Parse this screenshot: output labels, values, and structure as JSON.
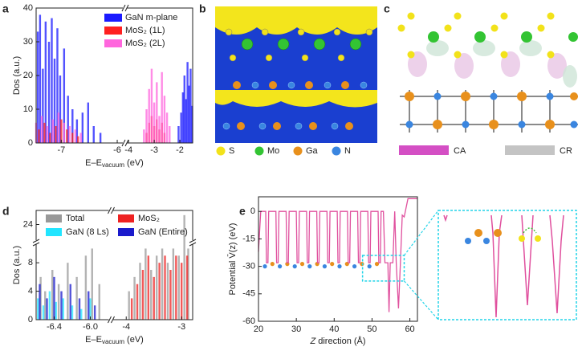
{
  "chart_data": [
    {
      "type": "spike",
      "label": "a",
      "ylabel": "Dos (a.u.)",
      "xlabel": {
        "main": "E–E",
        "sub": "vacuum",
        "tail": " (eV)"
      },
      "xlim_segments": [
        [
          -7.45,
          -5.9
        ],
        [
          -4.1,
          -1.5
        ]
      ],
      "ylim": [
        0,
        40
      ],
      "xticks": [
        -7,
        -6,
        -4,
        -3,
        -2
      ],
      "yticks": [
        0,
        10,
        20,
        30,
        40
      ],
      "legend": "upper right",
      "series": [
        {
          "name": "GaN m-plane",
          "color": "#1a1aff",
          "x": [
            -7.42,
            -7.38,
            -7.33,
            -7.28,
            -7.22,
            -7.17,
            -7.12,
            -7.07,
            -7.02,
            -6.95,
            -6.88,
            -6.8,
            -6.72,
            -6.62,
            -6.52,
            -6.42,
            -6.3,
            -2.05,
            -1.95,
            -1.88,
            -1.82,
            -1.76,
            -1.7,
            -1.64,
            -1.58,
            -1.52
          ],
          "values": [
            33,
            38,
            22,
            36,
            30,
            37,
            25,
            34,
            20,
            28,
            14,
            10,
            7,
            9,
            12,
            5,
            3,
            5,
            9,
            15,
            20,
            13,
            24,
            17,
            22,
            11
          ]
        },
        {
          "name": "MoS₂ (1L)",
          "color": "#ff2020",
          "x": [
            -7.4,
            -7.3,
            -7.2,
            -7.1,
            -7.0,
            -6.9,
            -6.8,
            -6.7,
            -3.3,
            -3.2,
            -3.1,
            -3.0,
            -2.9,
            -2.8,
            -2.7,
            -2.6
          ],
          "values": [
            4,
            6,
            3,
            5,
            7,
            4,
            3,
            2,
            3,
            6,
            8,
            5,
            7,
            4,
            6,
            3
          ]
        },
        {
          "name": "MoS₂ (2L)",
          "color": "#ff66dd",
          "x": [
            -7.45,
            -7.35,
            -7.25,
            -7.15,
            -7.05,
            -6.95,
            -6.85,
            -6.75,
            -6.65,
            -3.4,
            -3.3,
            -3.2,
            -3.1,
            -3.0,
            -2.9,
            -2.8,
            -2.7,
            -2.6,
            -2.5,
            -2.4
          ],
          "values": [
            6,
            8,
            5,
            7,
            9,
            6,
            5,
            4,
            3,
            4,
            10,
            16,
            22,
            12,
            18,
            8,
            21,
            14,
            9,
            5
          ]
        }
      ]
    },
    {
      "type": "spike",
      "label": "d",
      "ylabel": "Dos (a.u.)",
      "xlabel": {
        "main": "E–E",
        "sub": "vacuum",
        "tail": " (eV)"
      },
      "xlim_segments": [
        [
          -6.6,
          -5.8
        ],
        [
          -4.25,
          -2.8
        ]
      ],
      "ylim_segments": [
        [
          0,
          10.5
        ],
        [
          22.5,
          25.5
        ]
      ],
      "xticks": [
        -6.4,
        {
          "value": -6,
          "label": "-6.0"
        },
        -4,
        -3
      ],
      "yticks": [
        0,
        4,
        8,
        24
      ],
      "legend": "upper center",
      "series": [
        {
          "name": "Total",
          "color": "#999999",
          "x": [
            -6.55,
            -6.5,
            -6.42,
            -6.35,
            -6.25,
            -6.15,
            -6.05,
            -5.98,
            -5.9,
            -3.95,
            -3.85,
            -3.75,
            -3.65,
            -3.55,
            -3.45,
            -3.35,
            -3.25,
            -3.15,
            -3.05,
            -2.95,
            -2.88
          ],
          "values": [
            6,
            4,
            7,
            5,
            8,
            6,
            9,
            10,
            5,
            4,
            6,
            8,
            10,
            7,
            9,
            10,
            8,
            10,
            9,
            25,
            10
          ]
        },
        {
          "name": "MoS₂",
          "color": "#ee2222",
          "x": [
            -3.9,
            -3.8,
            -3.7,
            -3.6,
            -3.5,
            -3.4,
            -3.3,
            -3.2,
            -3.1,
            -3.0,
            -2.9
          ],
          "values": [
            3,
            5,
            7,
            9,
            6,
            8,
            9,
            7,
            9,
            8,
            9
          ]
        },
        {
          "name": "GaN (8 Ls)",
          "color": "#22e5ff",
          "x": [
            -6.58,
            -6.52,
            -6.45,
            -6.38,
            -6.3,
            -6.2,
            -6.1,
            -6.0
          ],
          "values": [
            3,
            2,
            4,
            2.5,
            3,
            2,
            1.5,
            3
          ]
        },
        {
          "name": "GaN (Entire)",
          "color": "#1a1acc",
          "x": [
            -6.56,
            -6.48,
            -6.4,
            -6.32,
            -6.22,
            -6.12,
            -6.02,
            -5.95
          ],
          "values": [
            5,
            3,
            6,
            4,
            5,
            3,
            4,
            2
          ]
        }
      ]
    },
    {
      "type": "line",
      "label": "e",
      "ylabel": "Potential V̄(z) (eV)",
      "xlabel": {
        "main": "Z",
        "tail": " direction (Å)"
      },
      "xlim": [
        20,
        62
      ],
      "ylim": [
        -60,
        8
      ],
      "xticks": [
        20,
        30,
        40,
        50,
        60
      ],
      "yticks": [
        0,
        -15,
        -30,
        -45,
        -60
      ],
      "series": [
        {
          "color": "#e0509e",
          "x": [
            20,
            20.6,
            21.9,
            22.1,
            22.5,
            22.7,
            24.6,
            24.8,
            25.2,
            25.4,
            27.3,
            27.5,
            27.9,
            28.1,
            30.0,
            30.2,
            30.6,
            30.8,
            32.7,
            32.9,
            33.3,
            33.5,
            35.4,
            35.6,
            36.0,
            36.2,
            38.1,
            38.3,
            38.7,
            38.9,
            40.8,
            41.0,
            41.4,
            41.6,
            43.5,
            43.7,
            44.1,
            44.3,
            46.2,
            46.4,
            46.8,
            47.0,
            48.9,
            49.1,
            49.5,
            49.7,
            51.6,
            51.8,
            52.2,
            52.4,
            53,
            53.4,
            54.2,
            54.5,
            54.8,
            55.5,
            56,
            56.4,
            57,
            57.5,
            58,
            58.5,
            59.5,
            62
          ],
          "values": [
            -22,
            0,
            0,
            -28,
            -28,
            0,
            0,
            -28,
            -28,
            0,
            0,
            -28,
            -28,
            0,
            0,
            -28,
            -28,
            0,
            0,
            -28,
            -28,
            0,
            0,
            -28,
            -28,
            0,
            0,
            -28,
            -28,
            0,
            0,
            -28,
            -28,
            0,
            0,
            -28,
            -28,
            0,
            0,
            -28,
            -28,
            0,
            0,
            -28,
            -28,
            0,
            0,
            -28,
            -28,
            0,
            0,
            -28,
            -28,
            -55,
            -28,
            -28,
            0,
            -28,
            -53,
            -28,
            -2,
            -3,
            7,
            7
          ]
        }
      ]
    }
  ],
  "structures": [
    {
      "label": "b",
      "legend": [
        {
          "name": "S",
          "color": "#f2e21a"
        },
        {
          "name": "Mo",
          "color": "#33c433"
        },
        {
          "name": "Ga",
          "color": "#e8901c"
        },
        {
          "name": "N",
          "color": "#3a86e0"
        }
      ]
    },
    {
      "label": "c",
      "legend": [
        {
          "name": "CA",
          "color": "#d44fc4"
        },
        {
          "name": "CR",
          "color": "#c4c4c4"
        }
      ]
    }
  ]
}
